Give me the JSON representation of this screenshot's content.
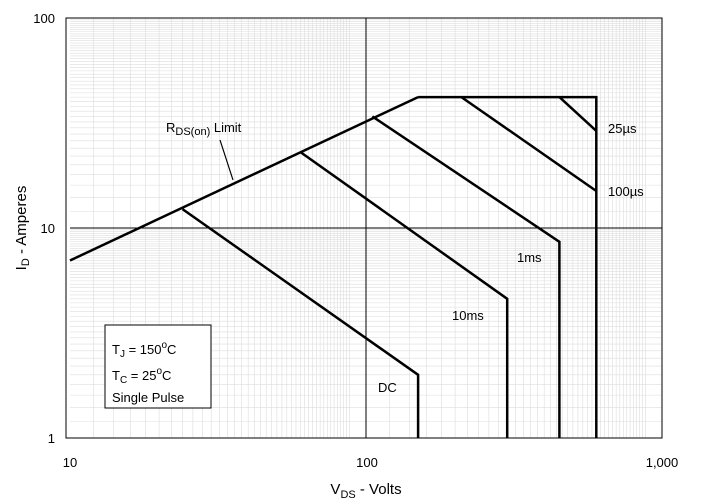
{
  "chart_data": {
    "type": "line",
    "x_scale": "log",
    "y_scale": "log",
    "xlim": [
      10,
      1000
    ],
    "ylim": [
      1,
      100
    ],
    "grid": true,
    "x_ticks": [
      "10",
      "100",
      "1,000"
    ],
    "y_ticks": [
      "1",
      "10",
      "100"
    ],
    "xlabel": {
      "main": "V",
      "sub": "DS",
      "rest": " - Volts"
    },
    "ylabel": {
      "main": "I",
      "sub": "D",
      "rest": " - Amperes"
    },
    "rds_label": {
      "main": "R",
      "sub": "DS(on)",
      "rest": " Limit"
    },
    "rds_limit": {
      "x": [
        10,
        150
      ],
      "y": [
        7,
        42
      ]
    },
    "series": [
      {
        "name": "DC",
        "x": [
          24,
          150,
          150
        ],
        "y": [
          12.3,
          2.0,
          1
        ]
      },
      {
        "name": "10ms",
        "x": [
          60,
          300,
          300
        ],
        "y": [
          23,
          4.6,
          1
        ]
      },
      {
        "name": "1ms",
        "x": [
          105,
          450,
          450
        ],
        "y": [
          34,
          8.6,
          1
        ]
      },
      {
        "name": "100µs",
        "x": [
          210,
          600
        ],
        "y": [
          42,
          15
        ]
      },
      {
        "name": "25µs",
        "x": [
          450,
          600
        ],
        "y": [
          42,
          29
        ]
      }
    ],
    "envelope": {
      "x": [
        150,
        600,
        600
      ],
      "y": [
        42,
        42,
        1
      ]
    },
    "conditions": {
      "tj": {
        "main": "T",
        "sub": "J",
        "rest": " = 150",
        "deg": "o",
        "unit": "C"
      },
      "tc": {
        "main": "T",
        "sub": "C",
        "rest": " = 25",
        "deg": "o",
        "unit": "C"
      },
      "pulse": "Single Pulse"
    }
  }
}
